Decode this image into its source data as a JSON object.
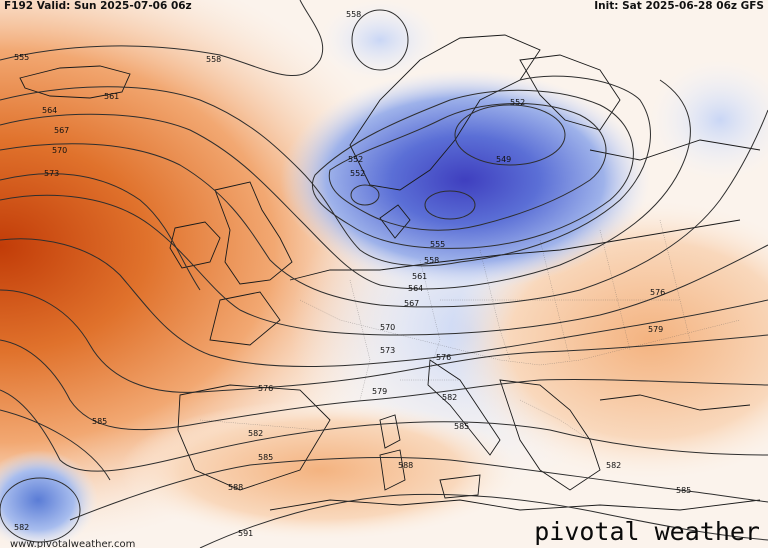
{
  "header": {
    "left": "F192 Valid: Sun 2025-07-06 06z",
    "right": "Init: Sat 2025-06-28 06z GFS"
  },
  "branding": {
    "logo": "pivotal weather",
    "site": "www.pivotalweather.com"
  },
  "contour_labels": [
    {
      "value": "555"
    },
    {
      "value": "558"
    },
    {
      "value": "561"
    },
    {
      "value": "564"
    },
    {
      "value": "567"
    },
    {
      "value": "570"
    },
    {
      "value": "573"
    },
    {
      "value": "552"
    },
    {
      "value": "549"
    },
    {
      "value": "552"
    },
    {
      "value": "555"
    },
    {
      "value": "558"
    },
    {
      "value": "561"
    },
    {
      "value": "564"
    },
    {
      "value": "567"
    },
    {
      "value": "570"
    },
    {
      "value": "573"
    },
    {
      "value": "576"
    },
    {
      "value": "579"
    },
    {
      "value": "576"
    },
    {
      "value": "579"
    },
    {
      "value": "576"
    },
    {
      "value": "582"
    },
    {
      "value": "585"
    },
    {
      "value": "582"
    },
    {
      "value": "585"
    },
    {
      "value": "588"
    },
    {
      "value": "588"
    },
    {
      "value": "582"
    },
    {
      "value": "585"
    },
    {
      "value": "582"
    },
    {
      "value": "591"
    },
    {
      "value": "585"
    },
    {
      "value": "558"
    },
    {
      "value": "552"
    }
  ]
}
